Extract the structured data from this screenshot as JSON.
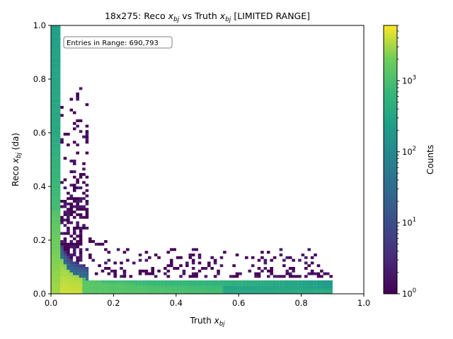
{
  "chart_data": {
    "type": "heatmap",
    "title": {
      "prefix": "18x275: Reco ",
      "var1": "x",
      "sub1": "bj",
      "middle": " vs Truth ",
      "var2": "x",
      "sub2": "bj",
      "suffix": " [LIMITED RANGE]"
    },
    "xlabel": {
      "prefix": "Truth ",
      "var": "x",
      "sub": "bj"
    },
    "ylabel": {
      "prefix": "Reco ",
      "var": "x",
      "sub": "bj",
      "suffix": " (da)"
    },
    "xlim": [
      0,
      1
    ],
    "ylim": [
      0,
      1
    ],
    "x_ticks": [
      "0.0",
      "0.2",
      "0.4",
      "0.6",
      "0.8",
      "1.0"
    ],
    "y_ticks": [
      "0.0",
      "0.2",
      "0.4",
      "0.6",
      "0.8",
      "1.0"
    ],
    "annotation": "Entries in Range: 690,793",
    "colorbar": {
      "label": "Counts",
      "scale": "log",
      "range": [
        1,
        6000
      ],
      "colormap": "viridis",
      "ticks": [
        {
          "value": 1,
          "base": "10",
          "exp": "0"
        },
        {
          "value": 10,
          "base": "10",
          "exp": "1"
        },
        {
          "value": 100,
          "base": "10",
          "exp": "2"
        },
        {
          "value": 1000,
          "base": "10",
          "exp": "3"
        }
      ]
    },
    "bins": {
      "x_count": 100,
      "y_count": 100,
      "x_range": [
        0,
        1
      ],
      "y_range": [
        0,
        1
      ]
    }
  }
}
